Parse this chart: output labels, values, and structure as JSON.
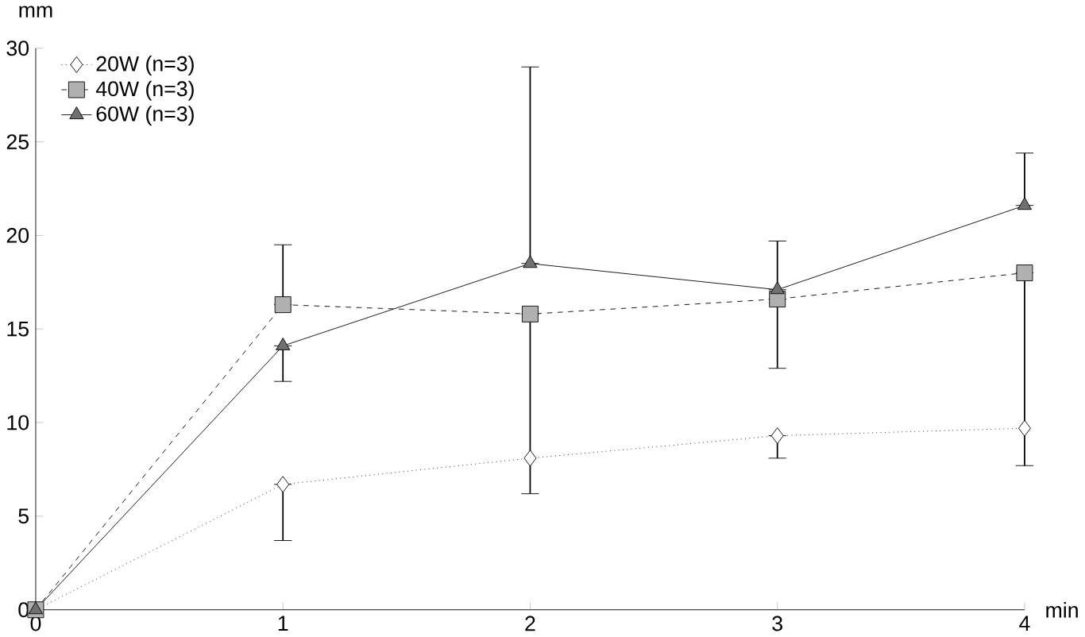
{
  "chart_data": {
    "type": "line",
    "xlabel": "min",
    "ylabel": "mm",
    "x": [
      0,
      1,
      2,
      3,
      4
    ],
    "xlim": [
      0,
      4
    ],
    "xticks": [
      0,
      1,
      2,
      3,
      4
    ],
    "ylim": [
      0,
      30
    ],
    "yticks": [
      0,
      5,
      10,
      15,
      20,
      25,
      30
    ],
    "legend": "top left",
    "grid": false,
    "series": [
      {
        "name": "20W (n=3)",
        "color": "#ffffff",
        "marker": "diamond",
        "line_style": "dotted",
        "values": [
          0,
          6.7,
          8.1,
          9.3,
          9.7
        ],
        "errors": [
          null,
          [
            3.7,
            6.7
          ],
          null,
          [
            8.1,
            9.3
          ],
          null
        ]
      },
      {
        "name": "40W (n=3)",
        "color": "#b0b0b0",
        "marker": "square",
        "line_style": "dashed",
        "values": [
          0,
          16.3,
          15.8,
          16.6,
          18.0
        ],
        "errors": [
          null,
          [
            16.3,
            19.5
          ],
          [
            6.2,
            15.8
          ],
          [
            12.9,
            16.6
          ],
          [
            7.7,
            18.0
          ]
        ]
      },
      {
        "name": "60W (n=3)",
        "color": "#707070",
        "marker": "triangle",
        "line_style": "solid",
        "values": [
          0,
          14.1,
          18.5,
          17.1,
          21.6
        ],
        "errors": [
          null,
          [
            12.2,
            14.1
          ],
          [
            18.5,
            29.0
          ],
          [
            17.1,
            19.7
          ],
          [
            21.6,
            24.4
          ]
        ]
      }
    ]
  }
}
